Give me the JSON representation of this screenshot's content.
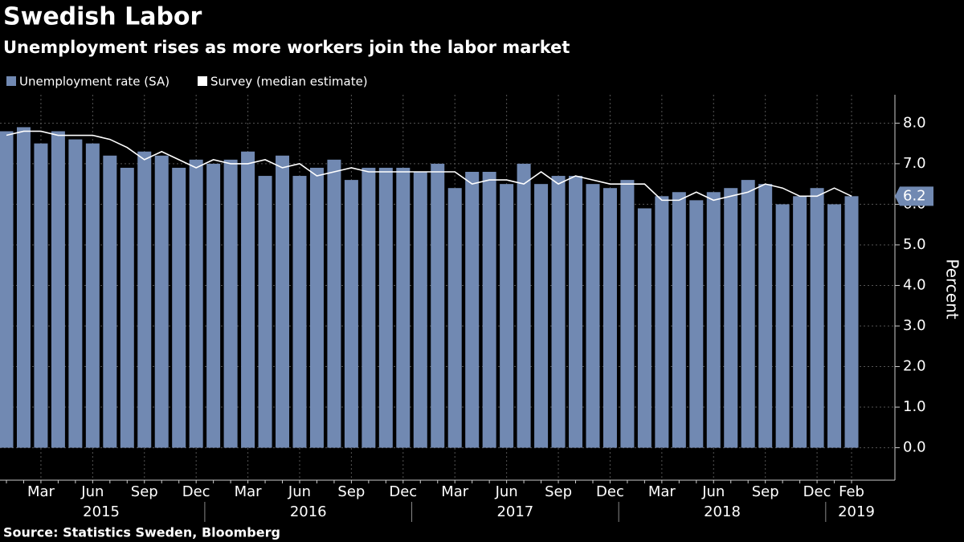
{
  "chart_data": {
    "type": "bar",
    "title": "Swedish Labor",
    "subtitle": "Unemployment rises as more workers join the labor market",
    "source": "Source: Statistics Sweden, Bloomberg",
    "y_label": "Percent",
    "categories": [
      null,
      null,
      "Mar",
      null,
      null,
      "Jun",
      null,
      null,
      "Sep",
      null,
      null,
      "Dec",
      null,
      null,
      "Mar",
      null,
      null,
      "Jun",
      null,
      null,
      "Sep",
      null,
      null,
      "Dec",
      null,
      null,
      "Mar",
      null,
      null,
      "Jun",
      null,
      null,
      "Sep",
      null,
      null,
      "Dec",
      null,
      null,
      "Mar",
      null,
      null,
      "Jun",
      null,
      null,
      "Sep",
      null,
      null,
      "Dec",
      null,
      "Feb"
    ],
    "years": [
      "2015",
      "2016",
      "2017",
      "2018",
      "2019"
    ],
    "series": [
      {
        "name": "Unemployment rate (SA)",
        "type": "bar",
        "color": "#7189b2",
        "values": [
          7.8,
          7.9,
          7.5,
          7.8,
          7.6,
          7.5,
          7.2,
          6.9,
          7.3,
          7.2,
          6.9,
          7.1,
          7.0,
          7.1,
          7.3,
          6.7,
          7.2,
          6.7,
          6.9,
          7.1,
          6.6,
          6.9,
          6.9,
          6.9,
          6.8,
          7.0,
          6.4,
          6.8,
          6.8,
          6.5,
          7.0,
          6.5,
          6.7,
          6.7,
          6.5,
          6.4,
          6.6,
          5.9,
          6.2,
          6.3,
          6.1,
          6.3,
          6.4,
          6.6,
          6.5,
          6.0,
          6.2,
          6.4,
          6.0,
          6.2
        ]
      },
      {
        "name": "Survey (median estimate)",
        "type": "line",
        "color": "#ffffff",
        "values": [
          7.7,
          7.8,
          7.8,
          7.7,
          7.7,
          7.7,
          7.6,
          7.4,
          7.1,
          7.3,
          7.1,
          6.9,
          7.1,
          7.0,
          7.0,
          7.1,
          6.9,
          7.0,
          6.7,
          6.8,
          6.9,
          6.8,
          6.8,
          6.8,
          6.8,
          6.8,
          6.8,
          6.5,
          6.6,
          6.6,
          6.5,
          6.8,
          6.5,
          6.7,
          6.6,
          6.5,
          6.5,
          6.5,
          6.1,
          6.1,
          6.3,
          6.1,
          6.2,
          6.3,
          6.5,
          6.4,
          6.2,
          6.2,
          6.4,
          6.2
        ]
      }
    ],
    "ylim": [
      -0.8,
      8.7
    ],
    "yticks": [
      {
        "value": 0,
        "label": "0.0"
      },
      {
        "value": 1,
        "label": "1.0"
      },
      {
        "value": 2,
        "label": "2.0"
      },
      {
        "value": 3,
        "label": "3.0"
      },
      {
        "value": 4,
        "label": "4.0"
      },
      {
        "value": 5,
        "label": "5.0"
      },
      {
        "value": 6,
        "label": "6.0"
      },
      {
        "value": 7,
        "label": "7.0"
      },
      {
        "value": 8,
        "label": "8.0"
      }
    ],
    "grid": true,
    "legend": "top-left"
  }
}
